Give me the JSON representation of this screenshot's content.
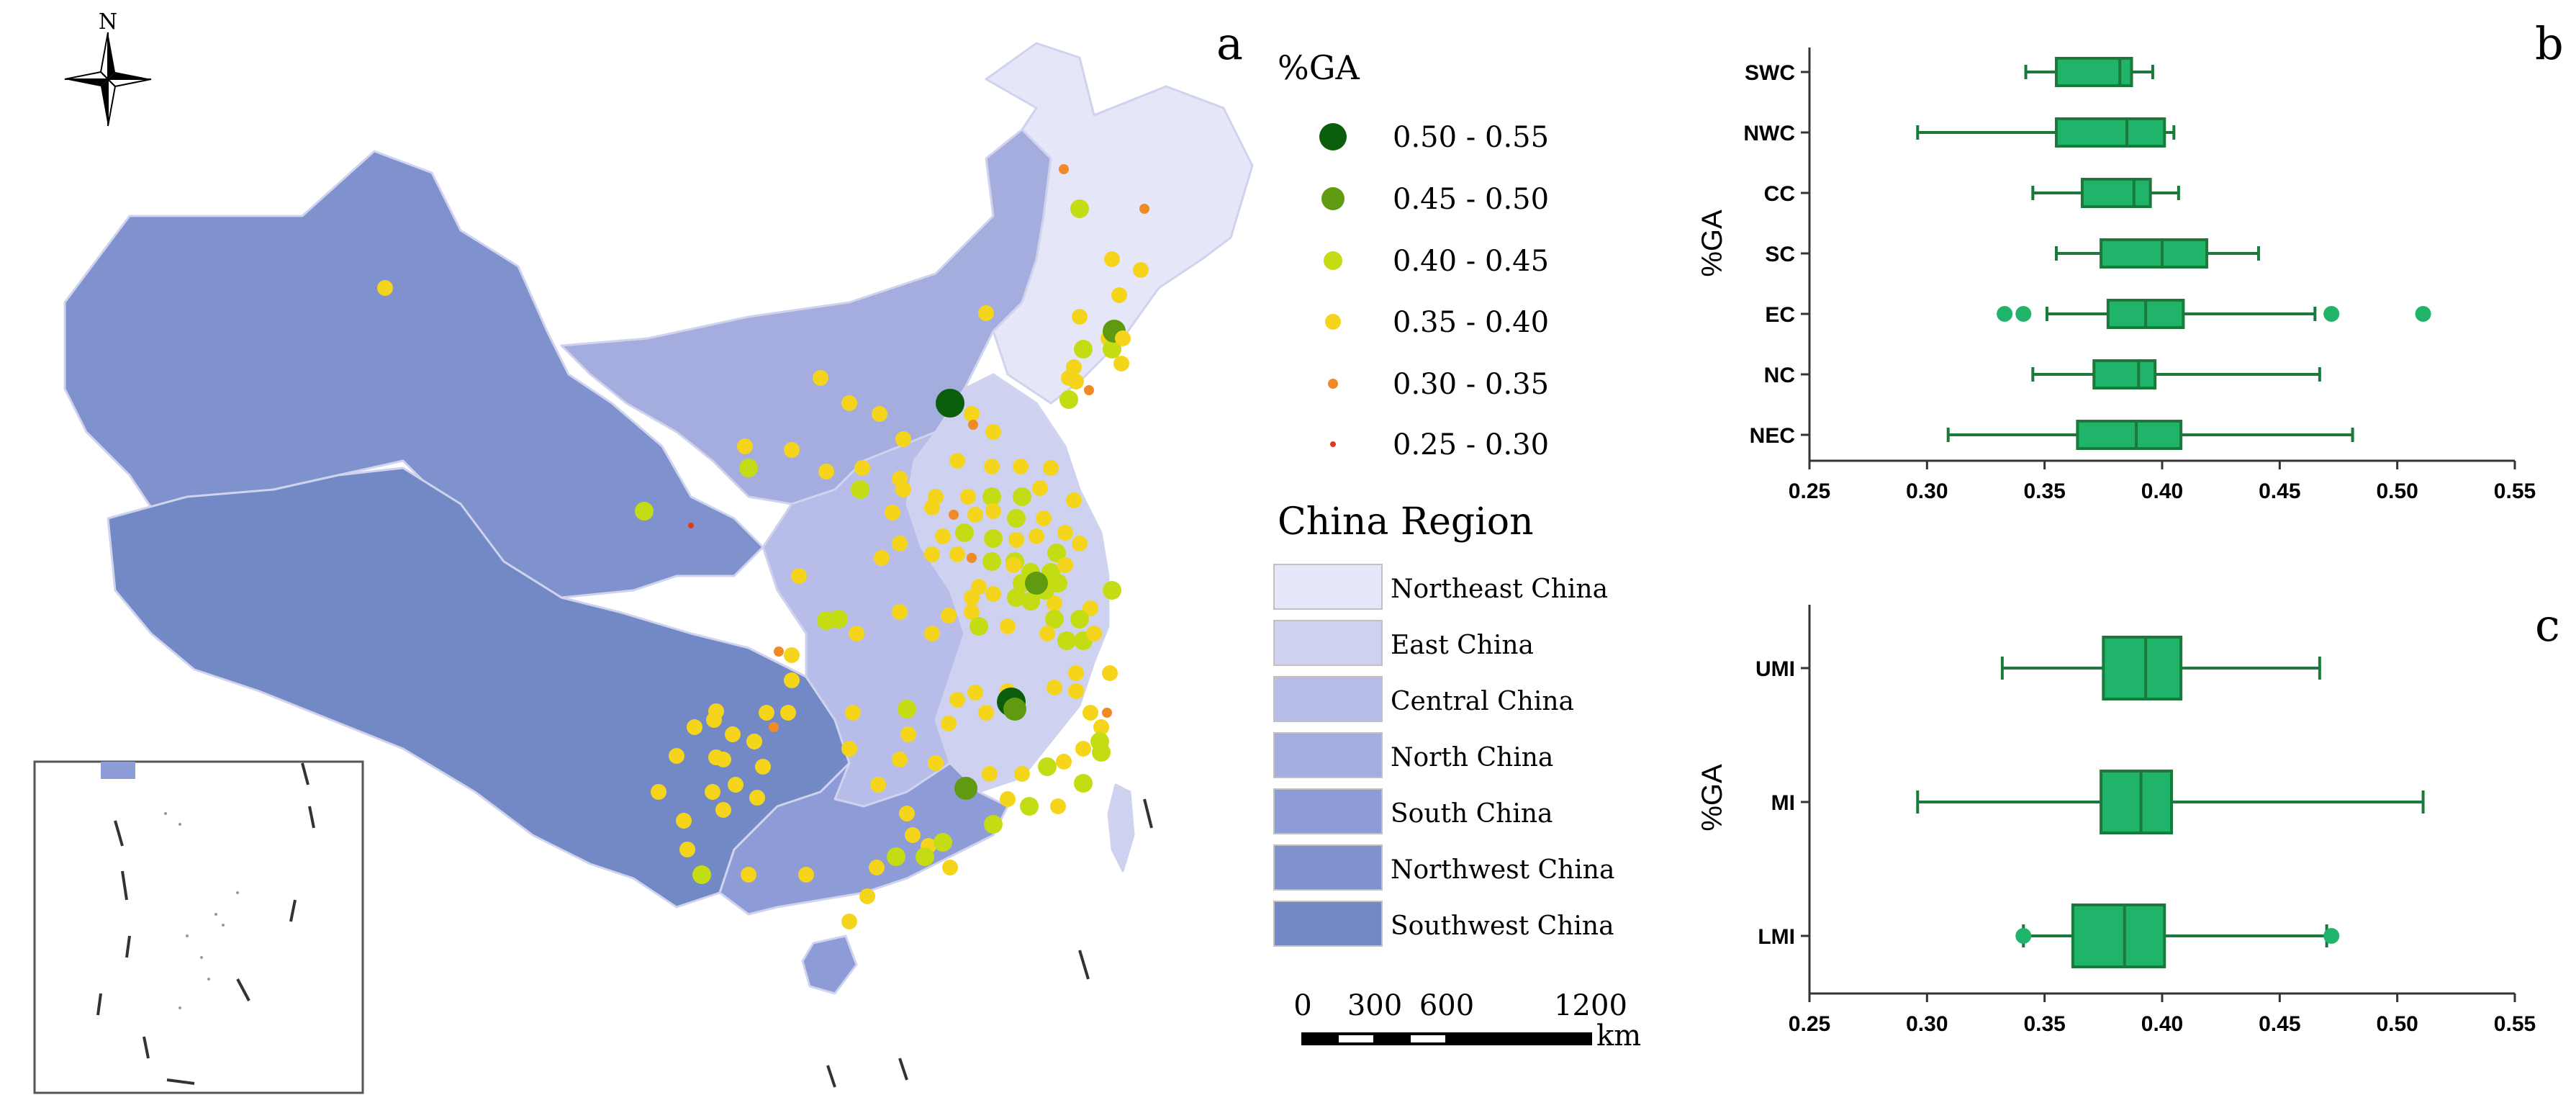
{
  "panel_a": {
    "panel_label": "a",
    "compass_label": "N",
    "legend_title_ga": "%GA",
    "ga_classes": [
      {
        "label": "0.50 - 0.55",
        "color": "#0b5e0b"
      },
      {
        "label": "0.45 - 0.50",
        "color": "#5f9a10"
      },
      {
        "label": "0.40 - 0.45",
        "color": "#c4dc14"
      },
      {
        "label": "0.35 - 0.40",
        "color": "#f4d51c"
      },
      {
        "label": "0.30 - 0.35",
        "color": "#f08a26"
      },
      {
        "label": "0.25 - 0.30",
        "color": "#e2381c"
      }
    ],
    "region_title": "China Region",
    "regions": [
      {
        "label": "Northeast China",
        "color": "#e5e6f7"
      },
      {
        "label": "East China",
        "color": "#cfd1f1"
      },
      {
        "label": "Central China",
        "color": "#b7bde8"
      },
      {
        "label": "North China",
        "color": "#a5addf"
      },
      {
        "label": "South China",
        "color": "#8d9bd6"
      },
      {
        "label": "Northwest China",
        "color": "#8092cd"
      },
      {
        "label": "Southwest China",
        "color": "#7289c5"
      }
    ],
    "scale_ticks": [
      "0",
      "300",
      "600",
      "1200"
    ],
    "scale_unit": "km"
  },
  "chart_data": [
    {
      "type": "boxplot",
      "panel_label": "b",
      "ylabel": "%GA",
      "xlim": [
        0.25,
        0.55
      ],
      "xticks": [
        "0.25",
        "0.30",
        "0.35",
        "0.40",
        "0.45",
        "0.50",
        "0.55"
      ],
      "box_color": "#20b46a",
      "categories": [
        "SWC",
        "NWC",
        "CC",
        "SC",
        "EC",
        "NC",
        "NEC"
      ],
      "boxes": [
        {
          "category": "SWC",
          "whisker_low": 0.342,
          "q1": 0.355,
          "median": 0.382,
          "q3": 0.387,
          "whisker_high": 0.396,
          "outliers": []
        },
        {
          "category": "NWC",
          "whisker_low": 0.296,
          "q1": 0.355,
          "median": 0.385,
          "q3": 0.401,
          "whisker_high": 0.405,
          "outliers": []
        },
        {
          "category": "CC",
          "whisker_low": 0.345,
          "q1": 0.366,
          "median": 0.388,
          "q3": 0.395,
          "whisker_high": 0.407,
          "outliers": []
        },
        {
          "category": "SC",
          "whisker_low": 0.355,
          "q1": 0.374,
          "median": 0.4,
          "q3": 0.419,
          "whisker_high": 0.441,
          "outliers": []
        },
        {
          "category": "EC",
          "whisker_low": 0.351,
          "q1": 0.377,
          "median": 0.393,
          "q3": 0.409,
          "whisker_high": 0.465,
          "outliers": [
            0.333,
            0.341,
            0.472,
            0.511
          ]
        },
        {
          "category": "NC",
          "whisker_low": 0.345,
          "q1": 0.371,
          "median": 0.39,
          "q3": 0.397,
          "whisker_high": 0.467,
          "outliers": []
        },
        {
          "category": "NEC",
          "whisker_low": 0.309,
          "q1": 0.364,
          "median": 0.389,
          "q3": 0.408,
          "whisker_high": 0.481,
          "outliers": []
        }
      ]
    },
    {
      "type": "boxplot",
      "panel_label": "c",
      "ylabel": "%GA",
      "xlim": [
        0.25,
        0.55
      ],
      "xticks": [
        "0.25",
        "0.30",
        "0.35",
        "0.40",
        "0.45",
        "0.50",
        "0.55"
      ],
      "box_color": "#20b46a",
      "categories": [
        "UMI",
        "MI",
        "LMI"
      ],
      "boxes": [
        {
          "category": "UMI",
          "whisker_low": 0.332,
          "q1": 0.375,
          "median": 0.393,
          "q3": 0.408,
          "whisker_high": 0.467,
          "outliers": []
        },
        {
          "category": "MI",
          "whisker_low": 0.296,
          "q1": 0.374,
          "median": 0.391,
          "q3": 0.404,
          "whisker_high": 0.511,
          "outliers": []
        },
        {
          "category": "LMI",
          "whisker_low": 0.341,
          "q1": 0.362,
          "median": 0.384,
          "q3": 0.401,
          "whisker_high": 0.47,
          "outliers": [
            0.341,
            0.472
          ]
        }
      ]
    }
  ]
}
